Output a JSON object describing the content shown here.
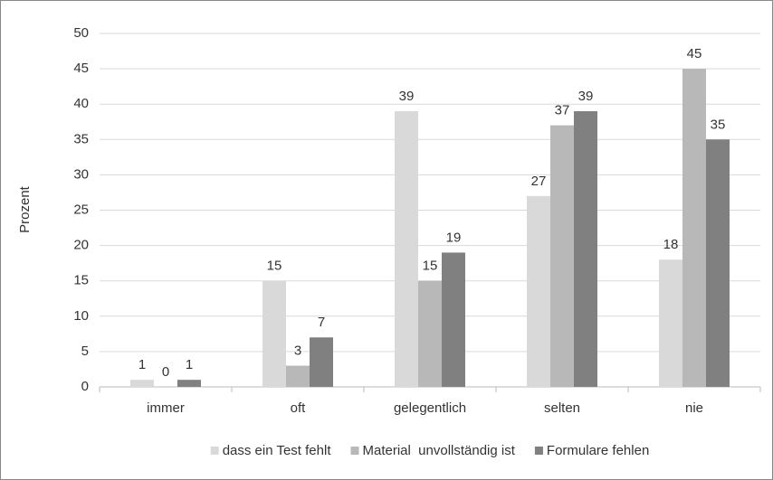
{
  "chart_data": {
    "type": "bar",
    "categories": [
      "immer",
      "oft",
      "gelegentlich",
      "selten",
      "nie"
    ],
    "y_label": "Prozent",
    "series": [
      {
        "name": "dass ein Test fehlt",
        "color": "#d9d9d9",
        "values": [
          1,
          15,
          39,
          27,
          18
        ]
      },
      {
        "name": "Material  unvollständig ist",
        "color": "#b8b8b8",
        "values": [
          0,
          3,
          15,
          37,
          45
        ]
      },
      {
        "name": "Formulare fehlen",
        "color": "#808080",
        "values": [
          1,
          7,
          19,
          39,
          35
        ]
      }
    ],
    "ylim": [
      0,
      50
    ],
    "yticks": [
      0,
      5,
      10,
      15,
      20,
      25,
      30,
      35,
      40,
      45,
      50
    ],
    "grid": true,
    "legend": "bottom"
  }
}
